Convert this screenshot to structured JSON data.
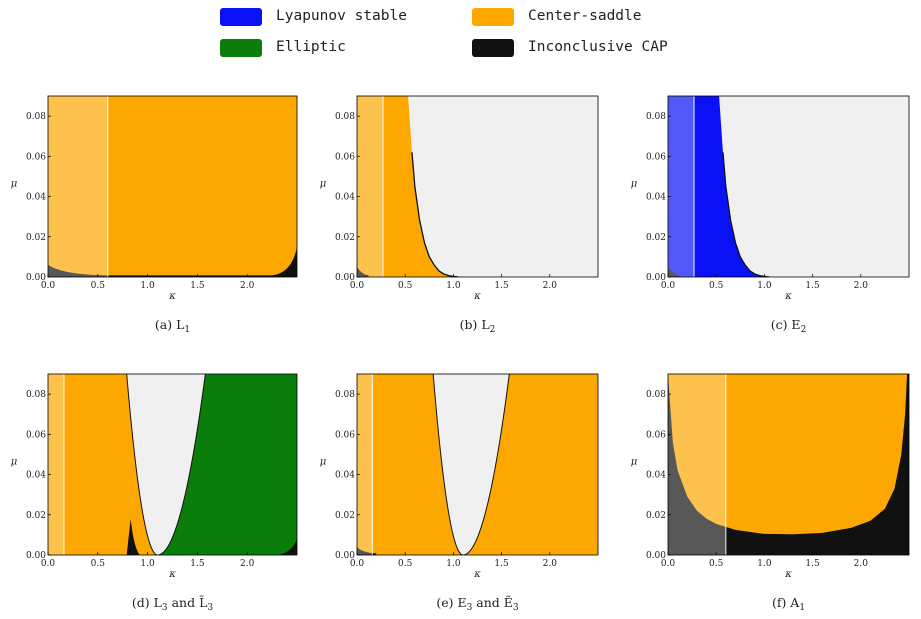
{
  "legend": {
    "items": [
      {
        "label": "Lyapunov stable",
        "color": "#0a12f5"
      },
      {
        "label": "Center-saddle",
        "color": "#fda800"
      },
      {
        "label": "Elliptic",
        "color": "#0a7d0a"
      },
      {
        "label": "Inconclusive CAP",
        "color": "#111111"
      }
    ]
  },
  "colors": {
    "lyapunov_stable": "#0a12f5",
    "center_saddle": "#fda800",
    "elliptic": "#0a7d0a",
    "inconclusive_cap": "#111111",
    "background": "#f0f0f0",
    "overlay": "#ffffff",
    "overlay_opacity": 0.3
  },
  "chart_data": [
    {
      "type": "heatmap",
      "caption": "(a) L",
      "caption_sub": "1",
      "caption_rest": "",
      "xlabel": "κ",
      "ylabel": "μ",
      "xlim": [
        0,
        2.5
      ],
      "ylim": [
        0,
        0.09
      ],
      "xticks": [
        "0.0",
        "0.5",
        "1.0",
        "1.5",
        "2.0"
      ],
      "yticks": [
        "0.00",
        "0.02",
        "0.04",
        "0.06",
        "0.08"
      ],
      "shaded_kappa_max": 0.6,
      "regions": [
        {
          "class": "center_saddle",
          "description_kappa_range": [
            0,
            2.5
          ],
          "mu_min": 0.0015
        },
        {
          "class": "inconclusive_cap",
          "kappa_range": [
            2.4,
            2.5
          ]
        }
      ]
    },
    {
      "type": "heatmap",
      "caption": "(b) L",
      "caption_sub": "2",
      "caption_rest": "",
      "xlabel": "κ",
      "ylabel": "μ",
      "xlim": [
        0,
        2.5
      ],
      "ylim": [
        0,
        0.09
      ],
      "xticks": [
        "0.0",
        "0.5",
        "1.0",
        "1.5",
        "2.0"
      ],
      "yticks": [
        "0.00",
        "0.02",
        "0.04",
        "0.06",
        "0.08"
      ],
      "shaded_kappa_max": 0.27,
      "boundary": {
        "kappa": [
          0.0,
          0.53,
          0.57,
          0.6,
          0.65,
          0.7,
          0.75,
          0.8,
          0.85,
          0.9,
          0.95,
          1.0
        ],
        "mu": [
          0.09,
          0.09,
          0.062,
          0.045,
          0.028,
          0.017,
          0.01,
          0.006,
          0.003,
          0.0015,
          0.0007,
          0.0003
        ]
      },
      "regions": [
        {
          "class": "center_saddle",
          "side": "left of boundary"
        }
      ]
    },
    {
      "type": "heatmap",
      "caption": "(c) E",
      "caption_sub": "2",
      "caption_rest": "",
      "xlabel": "κ",
      "ylabel": "μ",
      "xlim": [
        0,
        2.5
      ],
      "ylim": [
        0,
        0.09
      ],
      "xticks": [
        "0.0",
        "0.5",
        "1.0",
        "1.5",
        "2.0"
      ],
      "yticks": [
        "0.00",
        "0.02",
        "0.04",
        "0.06",
        "0.08"
      ],
      "shaded_kappa_max": 0.27,
      "boundary": {
        "kappa": [
          0.0,
          0.53,
          0.57,
          0.6,
          0.65,
          0.7,
          0.75,
          0.8,
          0.85,
          0.9,
          0.95,
          1.0
        ],
        "mu": [
          0.09,
          0.09,
          0.062,
          0.045,
          0.028,
          0.017,
          0.01,
          0.006,
          0.003,
          0.0015,
          0.0007,
          0.0003
        ]
      },
      "regions": [
        {
          "class": "lyapunov_stable",
          "side": "left of boundary"
        }
      ]
    },
    {
      "type": "heatmap",
      "caption": "(d) L",
      "caption_sub": "3",
      "caption_rest": " and L̃",
      "caption_sub2": "3",
      "xlabel": "κ",
      "ylabel": "μ",
      "xlim": [
        0,
        2.5
      ],
      "ylim": [
        0,
        0.09
      ],
      "xticks": [
        "0.0",
        "0.5",
        "1.0",
        "1.5",
        "2.0"
      ],
      "yticks": [
        "0.00",
        "0.02",
        "0.04",
        "0.06",
        "0.08"
      ],
      "shaded_kappa_max": 0.16,
      "parabola": {
        "vertex_kappa": 1.1,
        "left_kappa_at_top": 0.79,
        "right_kappa_at_top": 1.58
      },
      "regions": [
        {
          "class": "center_saddle",
          "side": "left of parabola"
        },
        {
          "class": "elliptic",
          "side": "right of parabola"
        }
      ]
    },
    {
      "type": "heatmap",
      "caption": "(e) E",
      "caption_sub": "3",
      "caption_rest": " and Ẽ",
      "caption_sub2": "3",
      "xlabel": "κ",
      "ylabel": "μ",
      "xlim": [
        0,
        2.5
      ],
      "ylim": [
        0,
        0.09
      ],
      "xticks": [
        "0.0",
        "0.5",
        "1.0",
        "1.5",
        "2.0"
      ],
      "yticks": [
        "0.00",
        "0.02",
        "0.04",
        "0.06",
        "0.08"
      ],
      "shaded_kappa_max": 0.16,
      "parabola": {
        "vertex_kappa": 1.1,
        "left_kappa_at_top": 0.79,
        "right_kappa_at_top": 1.58
      },
      "regions": [
        {
          "class": "center_saddle",
          "side": "outside parabola"
        }
      ]
    },
    {
      "type": "heatmap",
      "caption": "(f) A",
      "caption_sub": "1",
      "caption_rest": "",
      "xlabel": "κ",
      "ylabel": "μ",
      "xlim": [
        0,
        2.5
      ],
      "ylim": [
        0,
        0.09
      ],
      "xticks": [
        "0.0",
        "0.5",
        "1.0",
        "1.5",
        "2.0"
      ],
      "yticks": [
        "0.00",
        "0.02",
        "0.04",
        "0.06",
        "0.08"
      ],
      "shaded_kappa_max": 0.6,
      "u_curve": {
        "kappa": [
          0.0,
          0.05,
          0.1,
          0.2,
          0.3,
          0.4,
          0.5,
          0.7,
          1.0,
          1.3,
          1.6,
          1.9,
          2.1,
          2.25,
          2.35,
          2.42,
          2.46,
          2.48
        ],
        "mu": [
          0.09,
          0.056,
          0.042,
          0.029,
          0.022,
          0.018,
          0.0155,
          0.0125,
          0.0105,
          0.0103,
          0.011,
          0.0135,
          0.017,
          0.023,
          0.033,
          0.05,
          0.07,
          0.09
        ]
      },
      "regions": [
        {
          "class": "center_saddle",
          "side": "above curve"
        },
        {
          "class": "inconclusive_cap",
          "side": "below curve"
        }
      ]
    }
  ]
}
